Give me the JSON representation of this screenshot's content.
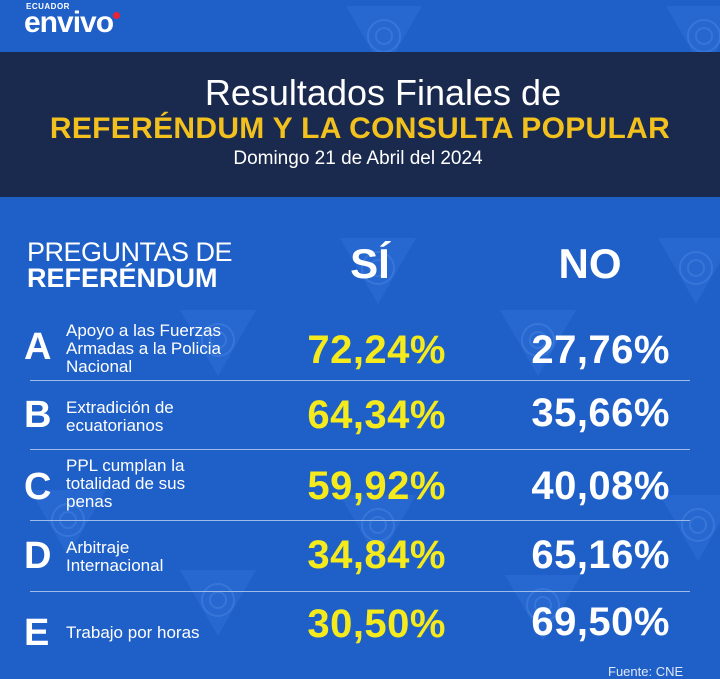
{
  "logo": {
    "country": "ECUADOR",
    "brand": "envivo"
  },
  "header": {
    "line1": "Resultados Finales de",
    "line2": "REFERÉNDUM Y LA CONSULTA POPULAR",
    "line3": "Domingo 21 de Abril del 2024"
  },
  "table": {
    "col_question_line1": "PREGUNTAS DE",
    "col_question_line2": "REFERÉNDUM",
    "col_si": "SÍ",
    "col_no": "NO",
    "rows": [
      {
        "letter": "A",
        "question_lines": [
          "Apoyo a las Fuerzas",
          "Armadas a la Policia",
          "Nacional"
        ],
        "si": "72,24%",
        "no": "27,76%"
      },
      {
        "letter": "B",
        "question_lines": [
          "Extradición de",
          "ecuatorianos"
        ],
        "si": "64,34%",
        "no": "35,66%"
      },
      {
        "letter": "C",
        "question_lines": [
          "PPL cumplan la",
          "totalidad de sus",
          "penas"
        ],
        "si": "59,92%",
        "no": "40,08%"
      },
      {
        "letter": "D",
        "question_lines": [
          "Arbitraje",
          "Internacional"
        ],
        "si": "34,84%",
        "no": "65,16%"
      },
      {
        "letter": "E",
        "question_lines": [
          "Trabajo por horas"
        ],
        "si": "30,50%",
        "no": "69,50%"
      }
    ]
  },
  "footer": {
    "source": "Fuente: CNE"
  },
  "colors": {
    "background": "#1f5fc8",
    "banner": "#1a2a4e",
    "accent_yellow": "#f2c11e",
    "si_yellow": "#f5ea1c"
  }
}
